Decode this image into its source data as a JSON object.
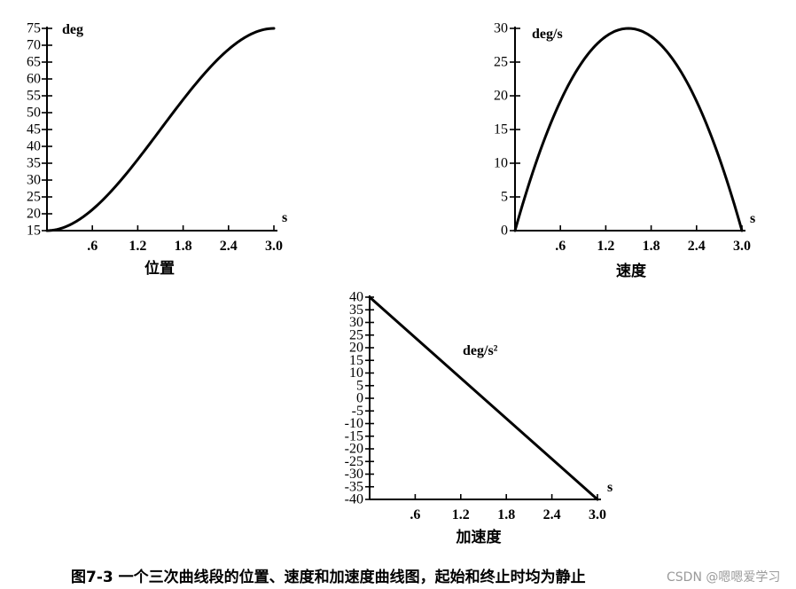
{
  "caption": "图7-3 一个三次曲线段的位置、速度和加速度曲线图，起始和终止时均为静止",
  "watermark": "CSDN @嗯嗯爱学习",
  "chart_data": [
    {
      "type": "line",
      "subtitle": "位置",
      "ylabel": "deg",
      "xlabel": "s",
      "xlim": [
        0,
        3.0
      ],
      "ylim": [
        15,
        75
      ],
      "x_ticks": [
        0.6,
        1.2,
        1.8,
        2.4,
        3.0
      ],
      "x_tick_labels": [
        ".6",
        "1.2",
        "1.8",
        "2.4",
        "3.0"
      ],
      "y_ticks": [
        15,
        20,
        25,
        30,
        35,
        40,
        45,
        50,
        55,
        60,
        65,
        70,
        75
      ],
      "series": [
        {
          "x": [
            0,
            0.3,
            0.6,
            0.9,
            1.2,
            1.5,
            1.8,
            2.1,
            2.4,
            2.7,
            3.0
          ],
          "y": [
            15,
            18.24,
            23.64,
            30.72,
            38.76,
            45,
            51.24,
            59.28,
            66.36,
            71.76,
            75
          ]
        }
      ]
    },
    {
      "type": "line",
      "subtitle": "速度",
      "ylabel": "deg/s",
      "xlabel": "s",
      "xlim": [
        0,
        3.0
      ],
      "ylim": [
        0,
        30
      ],
      "x_ticks": [
        0.6,
        1.2,
        1.8,
        2.4,
        3.0
      ],
      "x_tick_labels": [
        ".6",
        "1.2",
        "1.8",
        "2.4",
        "3.0"
      ],
      "y_ticks": [
        0,
        5,
        10,
        15,
        20,
        25,
        30
      ],
      "series": [
        {
          "x": [
            0,
            0.3,
            0.6,
            0.9,
            1.2,
            1.5,
            1.8,
            2.1,
            2.4,
            2.7,
            3.0
          ],
          "y": [
            0,
            10.8,
            19.2,
            25.2,
            28.8,
            30,
            28.8,
            25.2,
            19.2,
            10.8,
            0
          ]
        }
      ]
    },
    {
      "type": "line",
      "subtitle": "加速度",
      "ylabel": "deg/s²",
      "xlabel": "s",
      "xlim": [
        0,
        3.0
      ],
      "ylim": [
        -40,
        40
      ],
      "x_ticks": [
        0.6,
        1.2,
        1.8,
        2.4,
        3.0
      ],
      "x_tick_labels": [
        ".6",
        "1.2",
        "1.8",
        "2.4",
        "3.0"
      ],
      "y_ticks": [
        40,
        35,
        30,
        25,
        20,
        15,
        10,
        5,
        0,
        -5,
        -10,
        -15,
        -20,
        -25,
        -30,
        -35,
        -40
      ],
      "series": [
        {
          "x": [
            0,
            3.0
          ],
          "y": [
            40,
            -40
          ]
        }
      ]
    }
  ]
}
